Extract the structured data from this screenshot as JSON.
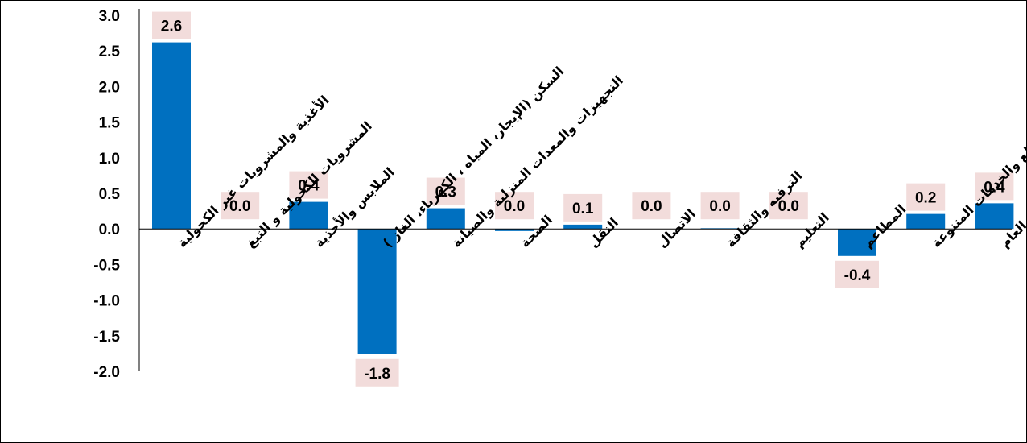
{
  "chart_data": {
    "type": "bar",
    "title": "",
    "xlabel": "",
    "ylabel": "",
    "ylim": [
      -2.0,
      3.0
    ],
    "y_ticks": [
      "3.0",
      "2.5",
      "2.0",
      "1.5",
      "1.0",
      "0.5",
      "0.0",
      "-0.5",
      "-1.0",
      "-1.5",
      "-2.0"
    ],
    "grid": false,
    "categories": [
      "الأغذية والمشروبات غير الكحولية",
      "المشروبات الكحولية و التبغ",
      "الملابس والأحذية",
      "السكن (الإيجار، المياه ، الكهرباء، الغاز )",
      "التجهيزات والمعدات المنزلية والصيانة",
      "الصحة",
      "النقل",
      "الاتصال",
      "الترفيه والثقافة",
      "التعليم",
      "المطاعم",
      "السلع والخدمات المتنوعة",
      "الرقم القياسي العام"
    ],
    "values": [
      2.62,
      0.0,
      0.38,
      -1.76,
      0.29,
      -0.03,
      0.06,
      0.0,
      0.01,
      0.0,
      -0.38,
      0.21,
      0.36
    ],
    "data_labels": [
      "2.6",
      "0.0",
      "0.4",
      "-1.8",
      "0.3",
      "0.0",
      "0.1",
      "0.0",
      "0.0",
      "0.0",
      "-0.4",
      "0.2",
      "0.4"
    ],
    "colors": {
      "bar": "#0070C0",
      "label_box": "#F2DCDB"
    }
  }
}
